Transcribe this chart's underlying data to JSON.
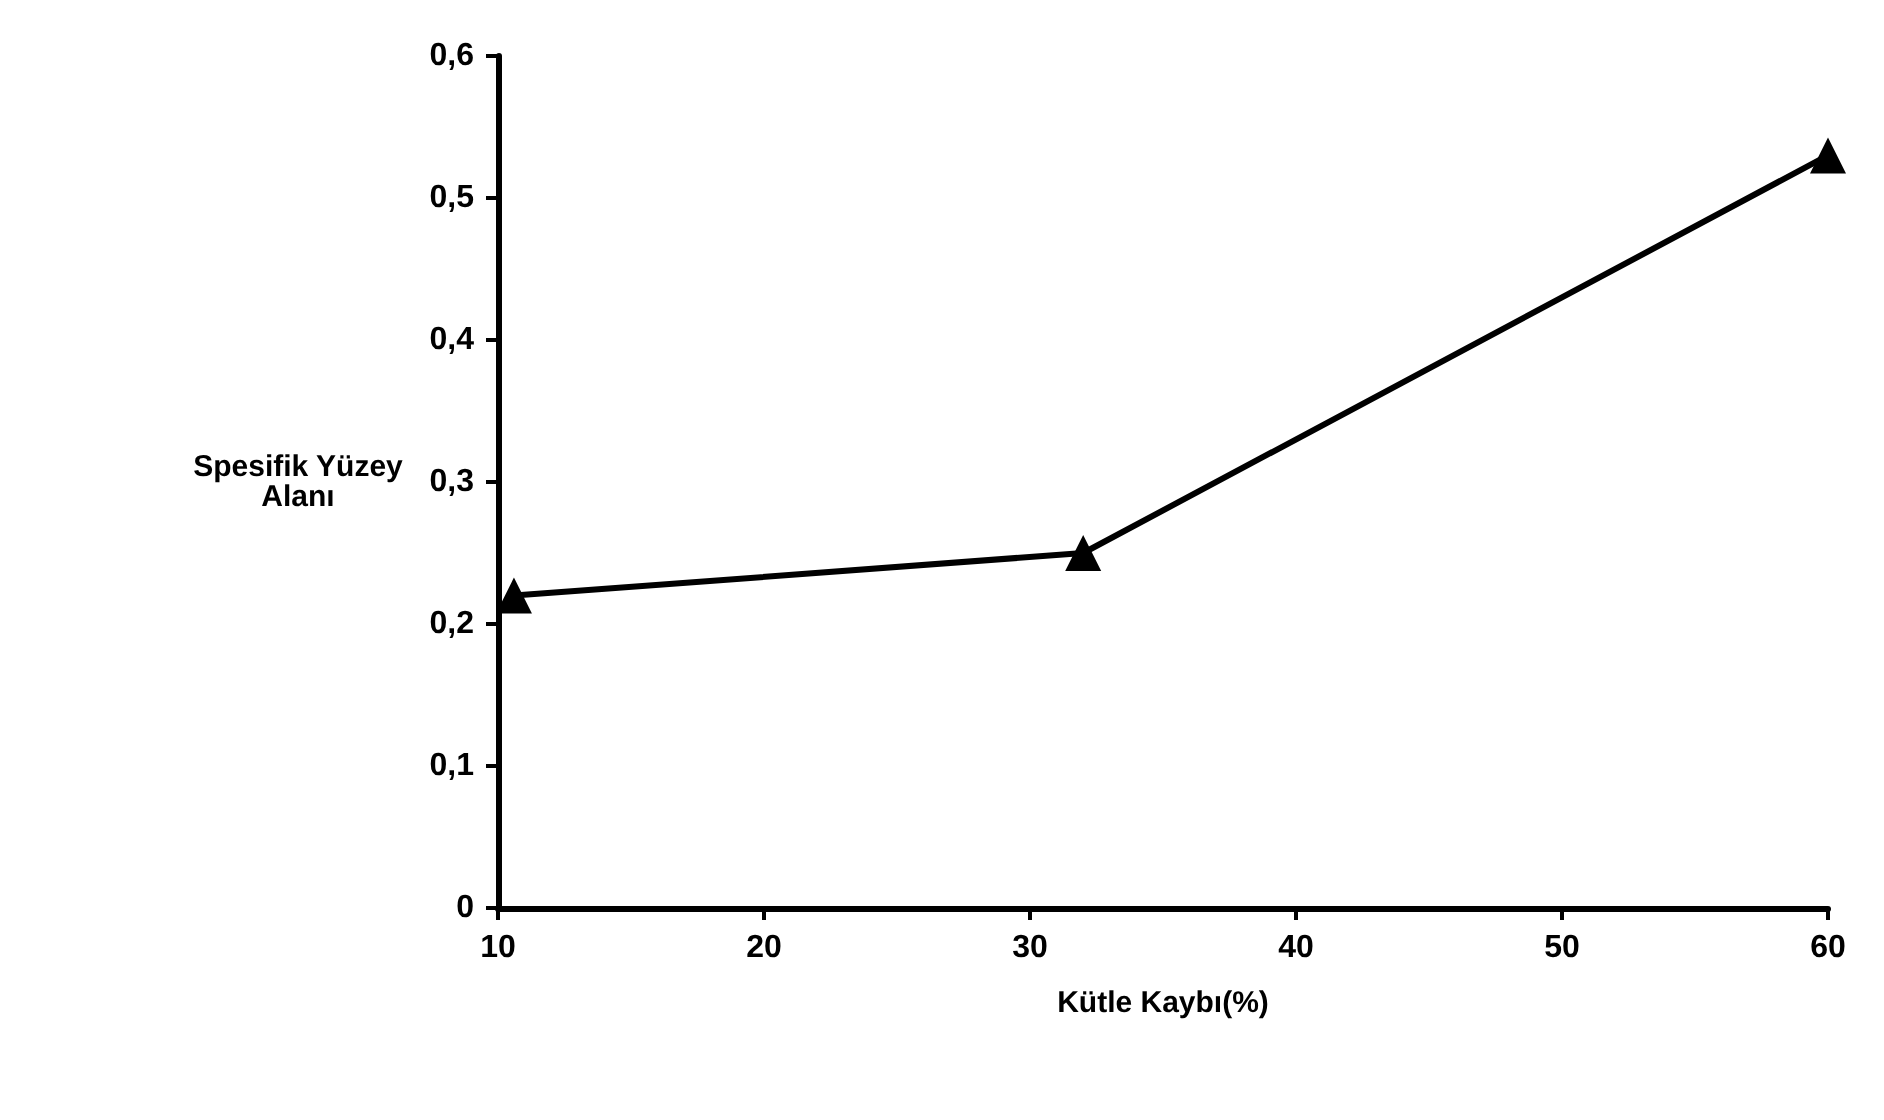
{
  "chart_data": {
    "type": "line",
    "x": [
      10.6,
      32,
      60
    ],
    "series": [
      {
        "color": "#000000",
        "values": [
          0.22,
          0.25,
          0.53
        ]
      }
    ],
    "xlabel": "Kütle Kaybı(%)",
    "ylabel": "Spesifik Yüzey\nAlanı",
    "xlim": [
      10,
      60
    ],
    "xticks": [
      10,
      20,
      30,
      40,
      50,
      60
    ],
    "ylim": [
      0,
      0.6
    ],
    "yticks": [
      {
        "value": 0,
        "label": "0"
      },
      {
        "value": 0.1,
        "label": "0,1"
      },
      {
        "value": 0.2,
        "label": "0,2"
      },
      {
        "value": 0.3,
        "label": "0,3"
      },
      {
        "value": 0.4,
        "label": "0,4"
      },
      {
        "value": 0.5,
        "label": "0,5"
      },
      {
        "value": 0.6,
        "label": "0,6"
      }
    ],
    "grid": false,
    "marker": "triangle",
    "line_style": "solid"
  }
}
